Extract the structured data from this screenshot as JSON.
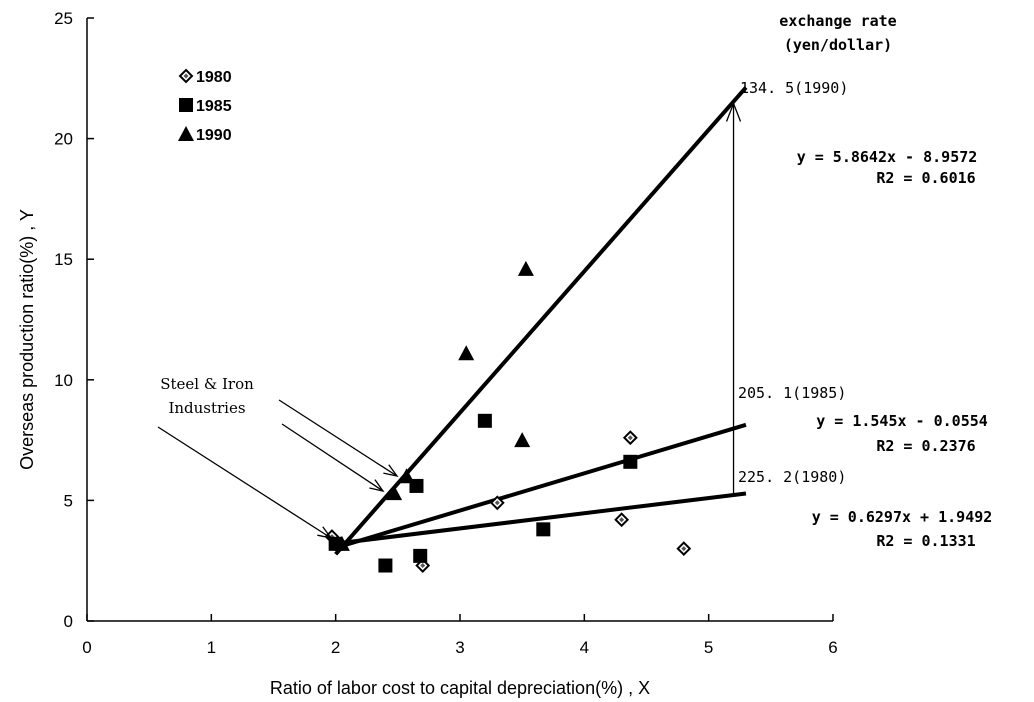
{
  "chart_data": {
    "type": "scatter",
    "title": "",
    "xlabel": "Ratio of labor cost to capital depreciation(%) , X",
    "ylabel": "Overseas production ratio(%) , Y",
    "xlim": [
      0,
      6
    ],
    "ylim": [
      0,
      25
    ],
    "x_ticks": [
      "0",
      "1",
      "2",
      "3",
      "4",
      "5",
      "6"
    ],
    "y_ticks": [
      "0",
      "5",
      "10",
      "15",
      "20",
      "25"
    ],
    "grid": false,
    "legend_position": "top-left",
    "series": [
      {
        "name": "1980",
        "marker": "diamond",
        "points": [
          [
            1.97,
            3.5
          ],
          [
            2.7,
            2.3
          ],
          [
            3.3,
            4.9
          ],
          [
            4.3,
            4.2
          ],
          [
            4.37,
            7.6
          ],
          [
            4.8,
            3.0
          ]
        ]
      },
      {
        "name": "1985",
        "marker": "square",
        "points": [
          [
            2.0,
            3.2
          ],
          [
            2.4,
            2.3
          ],
          [
            2.68,
            2.7
          ],
          [
            2.65,
            5.6
          ],
          [
            3.2,
            8.3
          ],
          [
            3.67,
            3.8
          ],
          [
            4.37,
            6.6
          ]
        ]
      },
      {
        "name": "1990",
        "marker": "triangle",
        "points": [
          [
            2.05,
            3.2
          ],
          [
            2.47,
            5.3
          ],
          [
            2.57,
            6.0
          ],
          [
            3.05,
            11.1
          ],
          [
            3.5,
            7.5
          ],
          [
            3.53,
            14.6
          ]
        ]
      }
    ],
    "trendlines": [
      {
        "series": "1990",
        "x_range": [
          2.0,
          5.3
        ],
        "slope": 5.8642,
        "intercept": -8.9572,
        "equation": "y = 5.8642x - 8.9572",
        "r2": "R2 = 0.6016",
        "rate_label": "134. 5(1990)"
      },
      {
        "series": "1985",
        "x_range": [
          2.0,
          5.3
        ],
        "slope": 1.545,
        "intercept": -0.0554,
        "equation": "y = 1.545x - 0.0554",
        "r2": "R2 = 0.2376",
        "rate_label": "205. 1(1985)"
      },
      {
        "series": "1980",
        "x_range": [
          2.0,
          5.3
        ],
        "slope": 0.6297,
        "intercept": 1.9492,
        "equation": "y = 0.6297x + 1.9492",
        "r2": "R2 = 0.1331",
        "rate_label": "225. 2(1980)"
      }
    ],
    "annotations": {
      "exchange_rate_line1": "exchange rate",
      "exchange_rate_line2": "(yen/dollar)",
      "steel_line1": "Steel & Iron",
      "steel_line2": "Industries"
    }
  }
}
